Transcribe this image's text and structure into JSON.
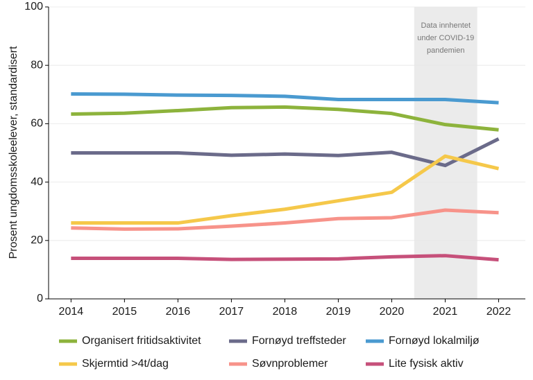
{
  "chart_data": {
    "type": "line",
    "y_label": "Prosent ungdomsskoleelever, standardisert",
    "x": [
      2014,
      2015,
      2016,
      2017,
      2018,
      2019,
      2020,
      2021,
      2022
    ],
    "xlim": [
      2013.58,
      2022.5
    ],
    "xticks": [
      2014,
      2015,
      2016,
      2017,
      2018,
      2019,
      2020,
      2021,
      2022
    ],
    "ylim": [
      0,
      100
    ],
    "yticks": [
      0,
      20,
      40,
      60,
      80,
      100
    ],
    "grid": true,
    "shaded_region": {
      "x": [
        2020.42,
        2021.6
      ],
      "color": "#ebebeb",
      "label": [
        "Data innhentet",
        "under COVID-19",
        "pandemien"
      ]
    },
    "series": [
      {
        "name": "Organisert fritidsaktivitet",
        "color": "#8db33c",
        "values": [
          63.3,
          63.6,
          64.5,
          65.5,
          65.7,
          64.9,
          63.5,
          59.7,
          57.9
        ]
      },
      {
        "name": "Fornøyd treffsteder",
        "color": "#6b6b8a",
        "values": [
          50,
          50,
          50,
          49.2,
          49.6,
          49.1,
          50.2,
          45.7,
          54.8
        ]
      },
      {
        "name": "Fornøyd lokalmiljø",
        "color": "#4a9ad0",
        "values": [
          70.2,
          70.1,
          69.8,
          69.7,
          69.4,
          68.3,
          68.3,
          68.3,
          67.2
        ]
      },
      {
        "name": "Skjermtid >4t/dag",
        "color": "#f5c84a",
        "values": [
          26,
          26,
          26,
          28.5,
          30.7,
          33.6,
          36.5,
          48.9,
          44.6
        ]
      },
      {
        "name": "Søvnproblemer",
        "color": "#f7938a",
        "values": [
          24.3,
          23.9,
          24,
          24.9,
          26,
          27.5,
          27.8,
          30.4,
          29.5
        ]
      },
      {
        "name": "Lite fysisk aktiv",
        "color": "#c6507a",
        "values": [
          13.9,
          13.9,
          13.9,
          13.5,
          13.6,
          13.7,
          14.4,
          14.8,
          13.4
        ]
      }
    ]
  }
}
